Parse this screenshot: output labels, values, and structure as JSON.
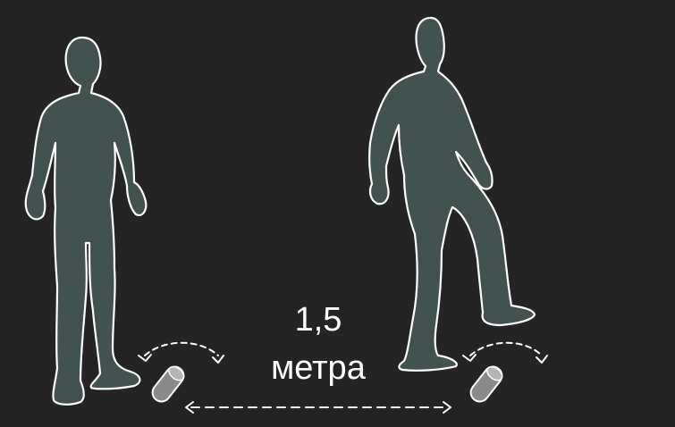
{
  "distance": {
    "value": "1,5",
    "unit": "метра"
  },
  "colors": {
    "background": "#242424",
    "figure_fill": "#44524f",
    "outline": "#ffffff",
    "roller_fill": "#8a8a8a"
  }
}
